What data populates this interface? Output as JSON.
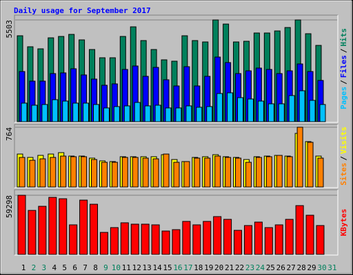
{
  "chart_data": [
    {
      "type": "bar",
      "title": "Daily usage for September 2017",
      "ylim": [
        0,
        5503
      ],
      "yticks": [
        5503
      ],
      "legend_separator": "/",
      "series": [
        {
          "name": "Hits",
          "color": "#00805c",
          "values": [
            4648,
            4053,
            3941,
            4536,
            4611,
            4722,
            4425,
            3904,
            3458,
            3458,
            4611,
            5131,
            4388,
            3904,
            3346,
            3272,
            4648,
            4388,
            4313,
            5503,
            5280,
            4313,
            4350,
            4797,
            4797,
            4908,
            5094,
            5503,
            4759,
            4127,
            null
          ]
        },
        {
          "name": "Files",
          "color": "#0000ff",
          "values": [
            2714,
            2194,
            2194,
            2603,
            2640,
            2863,
            2528,
            2305,
            1971,
            2045,
            2826,
            3012,
            2454,
            2937,
            2268,
            1933,
            2975,
            1933,
            2454,
            3495,
            3198,
            2603,
            2751,
            2900,
            2826,
            2603,
            2751,
            3123,
            2714,
            2231,
            null
          ]
        },
        {
          "name": "Pages",
          "color": "#00c0ff",
          "values": [
            1004,
            892,
            930,
            1190,
            1115,
            1004,
            1004,
            930,
            744,
            818,
            855,
            1041,
            855,
            892,
            744,
            744,
            855,
            781,
            818,
            1524,
            1562,
            1301,
            1227,
            1115,
            967,
            967,
            1413,
            1673,
            1153,
            930,
            null
          ]
        }
      ]
    },
    {
      "type": "bar",
      "ylim": [
        0,
        764
      ],
      "yticks": [
        764
      ],
      "legend_separator": "/",
      "series": [
        {
          "name": "Visits",
          "color": "#ffff00",
          "values": [
            421,
            378,
            404,
            421,
            439,
            395,
            395,
            369,
            334,
            325,
            387,
            387,
            387,
            387,
            413,
            351,
            325,
            378,
            387,
            413,
            387,
            378,
            351,
            387,
            395,
            404,
            395,
            685,
            580,
            395,
            null
          ]
        },
        {
          "name": "Sites",
          "color": "#ff8000",
          "values": [
            378,
            342,
            360,
            378,
            395,
            387,
            387,
            351,
            316,
            316,
            378,
            378,
            369,
            360,
            421,
            316,
            325,
            369,
            369,
            395,
            378,
            369,
            316,
            378,
            387,
            404,
            387,
            764,
            571,
            369,
            null
          ]
        }
      ]
    },
    {
      "type": "bar",
      "ylim": [
        0,
        59298
      ],
      "yticks": [
        59298
      ],
      "categories": [
        "1",
        "2",
        "3",
        "4",
        "5",
        "6",
        "7",
        "8",
        "9",
        "10",
        "11",
        "12",
        "13",
        "14",
        "15",
        "16",
        "17",
        "18",
        "19",
        "20",
        "21",
        "22",
        "23",
        "24",
        "25",
        "26",
        "27",
        "28",
        "29",
        "30",
        "31"
      ],
      "category_colors": [
        "#000000",
        "#00805c",
        "#00805c",
        "#000000",
        "#000000",
        "#000000",
        "#000000",
        "#000000",
        "#00805c",
        "#00805c",
        "#000000",
        "#000000",
        "#000000",
        "#000000",
        "#000000",
        "#00805c",
        "#00805c",
        "#000000",
        "#000000",
        "#000000",
        "#000000",
        "#000000",
        "#00805c",
        "#00805c",
        "#000000",
        "#000000",
        "#000000",
        "#000000",
        "#000000",
        "#00805c",
        "#00805c"
      ],
      "series": [
        {
          "name": "KBytes",
          "color": "#ff0000",
          "values": [
            59298,
            44096,
            48233,
            57191,
            55813,
            29627,
            54435,
            50300,
            22048,
            26870,
            31695,
            30317,
            30317,
            29627,
            23427,
            24805,
            33073,
            29627,
            33073,
            37897,
            35141,
            24116,
            28939,
            32384,
            26870,
            29627,
            35141,
            48922,
            39275,
            28939,
            null
          ]
        }
      ]
    }
  ]
}
